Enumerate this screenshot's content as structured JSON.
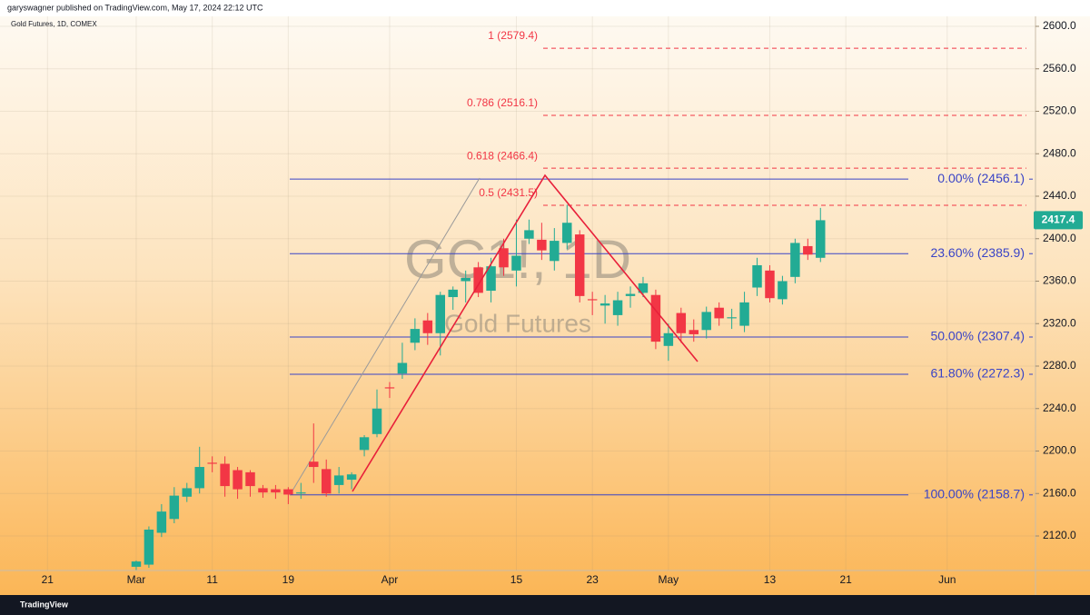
{
  "header": {
    "published": "garyswagner published on TradingView.com, May 17, 2024 22:12 UTC"
  },
  "chart_data": {
    "type": "candlestick",
    "title": "Gold Futures, 1D, COMEX",
    "watermark": {
      "symbol": "GC1!, 1D",
      "name": "Gold Futures"
    },
    "up_color": "#22ab94",
    "down_color": "#f23645",
    "open": [
      2091,
      2093,
      2123,
      2136,
      2157,
      2165,
      2189,
      2188,
      2182,
      2180,
      2165,
      2164,
      2164,
      2160,
      2190,
      2183,
      2168,
      2173,
      2201,
      2216,
      2260,
      2273,
      2302,
      2323,
      2311,
      2345,
      2360,
      2373,
      2351,
      2391,
      2370,
      2400,
      2399,
      2379,
      2396,
      2404,
      2343,
      2337,
      2328,
      2346,
      2349,
      2347,
      2299,
      2330,
      2314,
      2314,
      2335,
      2325,
      2318,
      2354,
      2370,
      2343,
      2364,
      2393,
      2382
    ],
    "high": [
      2097,
      2129,
      2150,
      2166,
      2170,
      2204,
      2195,
      2195,
      2185,
      2182,
      2168,
      2168,
      2166,
      2170,
      2226,
      2192,
      2185,
      2180,
      2215,
      2258,
      2265,
      2302,
      2325,
      2330,
      2350,
      2355,
      2370,
      2378,
      2382,
      2400,
      2418,
      2418,
      2415,
      2410,
      2432,
      2408,
      2350,
      2347,
      2350,
      2355,
      2364,
      2352,
      2320,
      2335,
      2324,
      2336,
      2340,
      2334,
      2350,
      2382,
      2375,
      2365,
      2400,
      2400,
      2429
    ],
    "low": [
      2088,
      2090,
      2119,
      2132,
      2152,
      2160,
      2180,
      2157,
      2155,
      2157,
      2156,
      2155,
      2150,
      2155,
      2170,
      2157,
      2160,
      2164,
      2195,
      2213,
      2250,
      2268,
      2295,
      2300,
      2290,
      2333,
      2340,
      2345,
      2340,
      2365,
      2355,
      2395,
      2380,
      2370,
      2390,
      2340,
      2328,
      2320,
      2318,
      2335,
      2345,
      2296,
      2285,
      2302,
      2303,
      2306,
      2318,
      2315,
      2312,
      2346,
      2340,
      2338,
      2358,
      2380,
      2378
    ],
    "close": [
      2096,
      2126,
      2143,
      2158,
      2165,
      2185,
      2188,
      2167,
      2164,
      2167,
      2161,
      2161,
      2159,
      2161,
      2185,
      2160,
      2177,
      2178,
      2213,
      2240,
      2259,
      2283,
      2315,
      2311,
      2347,
      2352,
      2363,
      2349,
      2374,
      2373,
      2384,
      2408,
      2389,
      2398,
      2415,
      2346,
      2342,
      2339,
      2342,
      2348,
      2358,
      2303,
      2311,
      2311,
      2310,
      2331,
      2325,
      2326,
      2340,
      2375,
      2344,
      2360,
      2396,
      2385,
      2417.4
    ],
    "xlim": [
      -10.75,
      70.97
    ],
    "xticks": [
      {
        "value": -7,
        "label": "21"
      },
      {
        "value": 0,
        "label": "Mar"
      },
      {
        "value": 6,
        "label": "11"
      },
      {
        "value": 12,
        "label": "19"
      },
      {
        "value": 20,
        "label": "Apr"
      },
      {
        "value": 30,
        "label": "15"
      },
      {
        "value": 36,
        "label": "23"
      },
      {
        "value": 42,
        "label": "May"
      },
      {
        "value": 50,
        "label": "13"
      },
      {
        "value": 56,
        "label": "21"
      },
      {
        "value": 64,
        "label": "Jun"
      }
    ],
    "ylim": [
      2087.5,
      2607.7
    ],
    "yticks": [
      {
        "value": 2120,
        "label": "2120.0"
      },
      {
        "value": 2160,
        "label": "2160.0"
      },
      {
        "value": 2200,
        "label": "2200.0"
      },
      {
        "value": 2240,
        "label": "2240.0"
      },
      {
        "value": 2280,
        "label": "2280.0"
      },
      {
        "value": 2320,
        "label": "2320.0"
      },
      {
        "value": 2360,
        "label": "2360.0"
      },
      {
        "value": 2400,
        "label": "2400.0"
      },
      {
        "value": 2440,
        "label": "2440.0"
      },
      {
        "value": 2480,
        "label": "2480.0"
      },
      {
        "value": 2520,
        "label": "2520.0"
      },
      {
        "value": 2560,
        "label": "2560.0"
      },
      {
        "value": 2600,
        "label": "2600.0"
      }
    ],
    "grid": true,
    "fib_retracement": {
      "color": "#3a44c6",
      "levels": [
        {
          "value": 2456.1,
          "label": "0.00% (2456.1)"
        },
        {
          "value": 2385.9,
          "label": "23.60% (2385.9)"
        },
        {
          "value": 2307.4,
          "label": "50.00% (2307.4)"
        },
        {
          "value": 2272.3,
          "label": "61.80% (2272.3)"
        },
        {
          "value": 2158.7,
          "label": "100.00% (2158.7)"
        }
      ]
    },
    "fib_extension": {
      "color": "#f23645",
      "levels": [
        {
          "value": 2431.5,
          "label": "0.5 (2431.5)"
        },
        {
          "value": 2466.4,
          "label": "0.618 (2466.4)"
        },
        {
          "value": 2516.1,
          "label": "0.786 (2516.1)"
        },
        {
          "value": 2579.4,
          "label": "1 (2579.4)"
        }
      ]
    }
  },
  "footer": {
    "brand": "TradingView"
  }
}
